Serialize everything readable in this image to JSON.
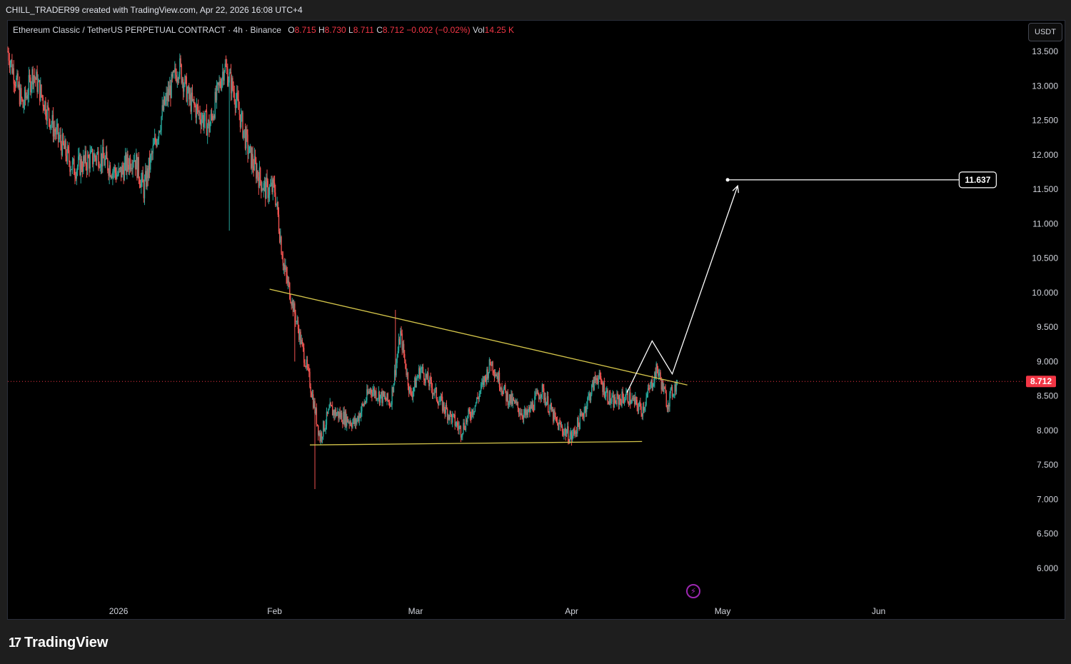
{
  "header": {
    "credit": "CHILL_TRADER99 created with TradingView.com, Apr 22, 2026 16:08 UTC+4"
  },
  "legend": {
    "symbol": "Ethereum Classic / TetherUS PERPETUAL CONTRACT · 4h · Binance",
    "open_label": "O",
    "open": "8.715",
    "high_label": "H",
    "high": "8.730",
    "low_label": "L",
    "low": "8.711",
    "close_label": "C",
    "close": "8.712",
    "change": "−0.002 (−0.02%)",
    "vol_label": "Vol",
    "vol": "14.25 K"
  },
  "currency_button": "USDT",
  "footer": {
    "brand": "TradingView"
  },
  "colors": {
    "up": "#26a69a",
    "down": "#ef5350",
    "trendline": "#d4c54a",
    "projection": "#ffffff",
    "price_line": "#f23645"
  },
  "chart_data": {
    "type": "candlestick",
    "title": "Ethereum Classic / TetherUS PERPETUAL CONTRACT · 4h · Binance",
    "y_ticks": [
      "13.500",
      "13.000",
      "12.500",
      "12.000",
      "11.500",
      "11.000",
      "10.500",
      "10.000",
      "9.500",
      "9.000",
      "8.500",
      "8.000",
      "7.500",
      "7.000",
      "6.500",
      "6.000"
    ],
    "ylim": [
      5.2,
      13.9
    ],
    "x_ticks": [
      {
        "label": "2026",
        "date": "2026-01-01"
      },
      {
        "label": "Feb",
        "date": "2026-02-01"
      },
      {
        "label": "Mar",
        "date": "2026-03-01"
      },
      {
        "label": "Apr",
        "date": "2026-04-01"
      },
      {
        "label": "May",
        "date": "2026-05-01"
      },
      {
        "label": "Jun",
        "date": "2026-06-01"
      }
    ],
    "xlim": [
      "2025-12-10",
      "2026-06-30"
    ],
    "last_date": "2026-04-22",
    "current_price": 8.712,
    "current_price_label": "8.712",
    "target_price": 11.637,
    "target_label": "11.637",
    "price_path": [
      {
        "date": "2025-12-10",
        "price": 13.5
      },
      {
        "date": "2025-12-13",
        "price": 12.7
      },
      {
        "date": "2025-12-15",
        "price": 13.2
      },
      {
        "date": "2025-12-19",
        "price": 12.4
      },
      {
        "date": "2025-12-23",
        "price": 11.8
      },
      {
        "date": "2025-12-28",
        "price": 12.0
      },
      {
        "date": "2026-01-01",
        "price": 11.7
      },
      {
        "date": "2026-01-04",
        "price": 12.0
      },
      {
        "date": "2026-01-06",
        "price": 11.5
      },
      {
        "date": "2026-01-10",
        "price": 12.7
      },
      {
        "date": "2026-01-13",
        "price": 13.3
      },
      {
        "date": "2026-01-15",
        "price": 12.8
      },
      {
        "date": "2026-01-19",
        "price": 12.4
      },
      {
        "date": "2026-01-22",
        "price": 13.3
      },
      {
        "date": "2026-01-24",
        "price": 12.9
      },
      {
        "date": "2026-01-27",
        "price": 12.0
      },
      {
        "date": "2026-01-30",
        "price": 11.5
      },
      {
        "date": "2026-02-01",
        "price": 11.5
      },
      {
        "date": "2026-02-03",
        "price": 10.3
      },
      {
        "date": "2026-02-05",
        "price": 9.7
      },
      {
        "date": "2026-02-08",
        "price": 8.7
      },
      {
        "date": "2026-02-10",
        "price": 7.9
      },
      {
        "date": "2026-02-12",
        "price": 8.3
      },
      {
        "date": "2026-02-17",
        "price": 8.1
      },
      {
        "date": "2026-02-20",
        "price": 8.6
      },
      {
        "date": "2026-02-24",
        "price": 8.4
      },
      {
        "date": "2026-02-26",
        "price": 9.4
      },
      {
        "date": "2026-02-28",
        "price": 8.5
      },
      {
        "date": "2026-03-02",
        "price": 8.9
      },
      {
        "date": "2026-03-06",
        "price": 8.4
      },
      {
        "date": "2026-03-10",
        "price": 8.0
      },
      {
        "date": "2026-03-13",
        "price": 8.4
      },
      {
        "date": "2026-03-16",
        "price": 9.0
      },
      {
        "date": "2026-03-19",
        "price": 8.5
      },
      {
        "date": "2026-03-23",
        "price": 8.2
      },
      {
        "date": "2026-03-26",
        "price": 8.6
      },
      {
        "date": "2026-03-29",
        "price": 8.1
      },
      {
        "date": "2026-04-01",
        "price": 7.9
      },
      {
        "date": "2026-04-03",
        "price": 8.2
      },
      {
        "date": "2026-04-06",
        "price": 8.8
      },
      {
        "date": "2026-04-09",
        "price": 8.4
      },
      {
        "date": "2026-04-12",
        "price": 8.5
      },
      {
        "date": "2026-04-15",
        "price": 8.3
      },
      {
        "date": "2026-04-18",
        "price": 8.9
      },
      {
        "date": "2026-04-20",
        "price": 8.4
      },
      {
        "date": "2026-04-22",
        "price": 8.712
      }
    ],
    "spikes": [
      {
        "date": "2026-02-09",
        "low": 7.15
      },
      {
        "date": "2026-01-23",
        "low": 10.9
      },
      {
        "date": "2026-02-05",
        "low": 9.0
      },
      {
        "date": "2026-02-25",
        "high": 9.75
      },
      {
        "date": "2026-04-01",
        "low": 7.78
      }
    ],
    "annotations": {
      "resistance_line": [
        {
          "date": "2026-01-31",
          "price": 10.05
        },
        {
          "date": "2026-04-24",
          "price": 8.66
        }
      ],
      "support_line": [
        {
          "date": "2026-02-08",
          "price": 7.79
        },
        {
          "date": "2026-04-15",
          "price": 7.84
        }
      ],
      "projection_path": [
        {
          "date": "2026-04-12",
          "price": 8.55
        },
        {
          "date": "2026-04-17",
          "price": 9.3
        },
        {
          "date": "2026-04-21",
          "price": 8.82
        },
        {
          "date": "2026-05-04",
          "price": 11.55
        }
      ],
      "target_line": [
        {
          "date": "2026-05-02",
          "price": 11.637
        },
        {
          "date": "2026-06-17",
          "price": 11.637
        }
      ]
    }
  }
}
